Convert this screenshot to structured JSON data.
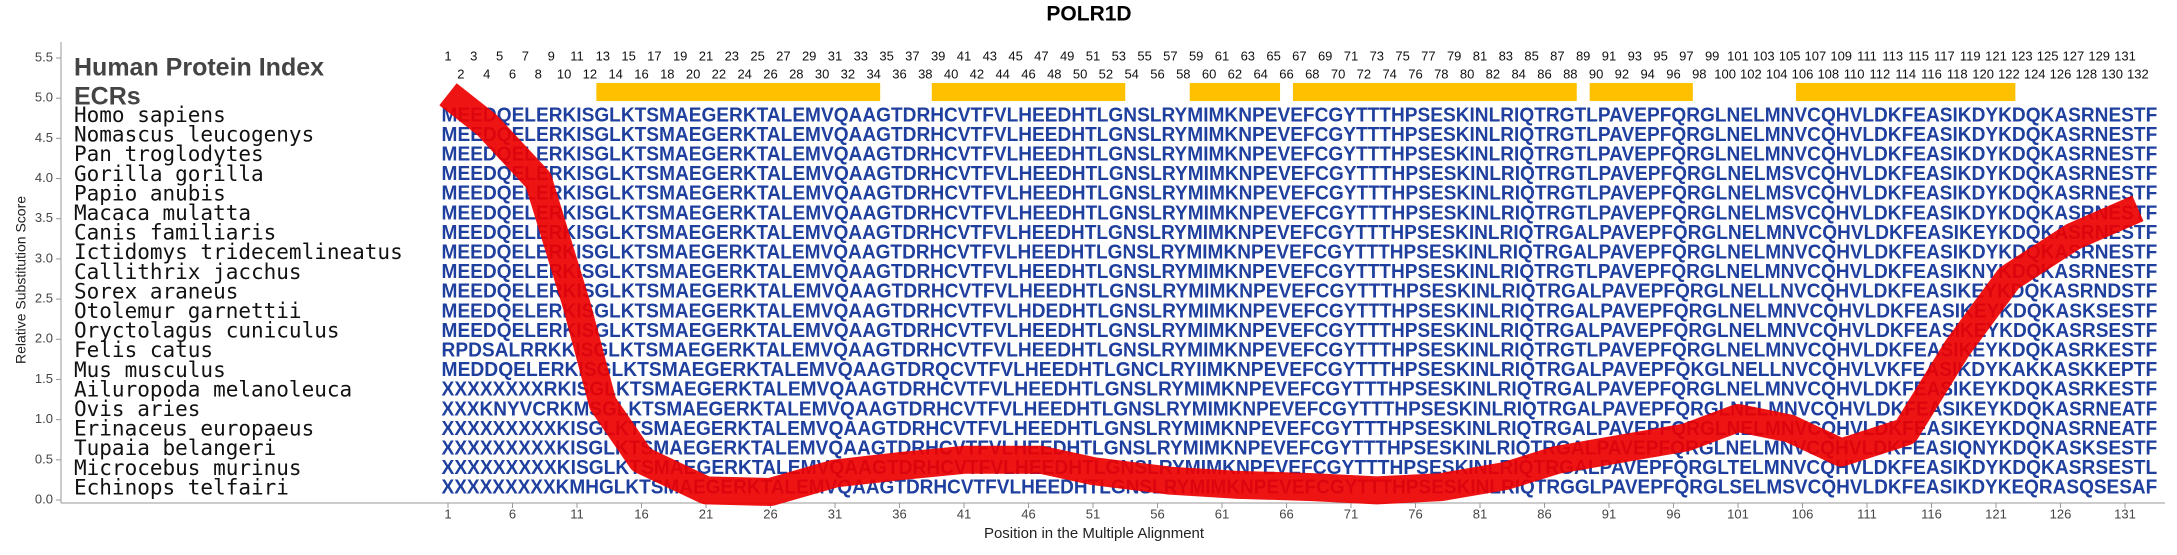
{
  "chart_data": {
    "type": "line",
    "title": "POLR1D",
    "y_label": "Relative Substitution Score",
    "x_label": "Position in the Multiple Alignment",
    "index_label": "Human Protein Index",
    "ecr_label": "ECRs",
    "color": "#ee0000",
    "ecr_color": "#ffc000",
    "sequence_color": "#1f3f9f",
    "ylim": [
      0,
      5.5
    ],
    "yticks": [
      {
        "value": 0,
        "label": "0.0"
      },
      {
        "value": 0.5,
        "label": "0.5"
      },
      {
        "value": 1,
        "label": "1.0"
      },
      {
        "value": 1.5,
        "label": "1.5"
      },
      {
        "value": 2,
        "label": "2.0"
      },
      {
        "value": 2.5,
        "label": "2.5"
      },
      {
        "value": 3,
        "label": "3.0"
      },
      {
        "value": 3.5,
        "label": "3.5"
      },
      {
        "value": 4,
        "label": "4.0"
      },
      {
        "value": 4.5,
        "label": "4.5"
      },
      {
        "value": 5,
        "label": "5.0"
      },
      {
        "value": 5.5,
        "label": "5.5"
      }
    ],
    "xlim": [
      1,
      132
    ],
    "xticks": [
      1,
      6,
      11,
      16,
      21,
      26,
      31,
      36,
      41,
      46,
      51,
      56,
      61,
      66,
      71,
      76,
      81,
      86,
      91,
      96,
      101,
      106,
      111,
      116,
      121,
      126,
      131
    ],
    "x": [
      1,
      4,
      8,
      11,
      13,
      16,
      21,
      26,
      31,
      36,
      41,
      47,
      51,
      57,
      62,
      68,
      73,
      78,
      83,
      87,
      92,
      97,
      101,
      105,
      109,
      114,
      118,
      122,
      127,
      132
    ],
    "values": [
      5.05,
      4.67,
      3.98,
      2.41,
      1.2,
      0.5,
      0.12,
      0.1,
      0.33,
      0.42,
      0.5,
      0.5,
      0.36,
      0.24,
      0.19,
      0.16,
      0.12,
      0.16,
      0.3,
      0.5,
      0.64,
      0.78,
      1.02,
      0.89,
      0.59,
      0.85,
      1.89,
      2.76,
      3.28,
      3.63
    ],
    "alignment_positions": [
      1,
      2,
      3,
      4,
      5,
      6,
      7,
      8,
      9,
      10,
      11,
      12,
      13,
      14,
      15,
      16,
      17,
      18,
      19,
      20,
      21,
      22,
      23,
      24,
      25,
      26,
      27,
      28,
      29,
      30,
      31,
      32,
      33,
      34,
      35,
      36,
      37,
      38,
      39,
      40,
      41,
      42,
      43,
      44,
      45,
      46,
      47,
      48,
      49,
      50,
      51,
      52,
      53,
      54,
      55,
      56,
      57,
      58,
      59,
      60,
      61,
      62,
      63,
      64,
      65,
      66,
      67,
      68,
      69,
      70,
      71,
      72,
      73,
      74,
      75,
      76,
      77,
      78,
      79,
      80,
      81,
      82,
      83,
      84,
      85,
      86,
      87,
      88,
      89,
      90,
      91,
      92,
      93,
      94,
      95,
      96,
      97,
      98,
      99,
      100,
      101,
      102,
      103,
      104,
      105,
      106,
      107,
      108,
      109,
      110,
      111,
      112,
      113,
      114,
      115,
      116,
      117,
      118,
      119,
      120,
      121,
      122,
      123,
      124,
      125,
      126,
      127,
      128,
      129,
      130,
      131,
      132
    ],
    "ecrs": [
      [
        13,
        34
      ],
      [
        39,
        53
      ],
      [
        59,
        65
      ],
      [
        67,
        88
      ],
      [
        90,
        97
      ],
      [
        106,
        122
      ]
    ],
    "species": [
      {
        "name": "Homo sapiens",
        "sequence": "MEEDQELERKISGLKTSMAEGERKTALEMVQAAGTDRHCVTFVLHEEDHTLGNSLRYMIMKNPEVEFCGYTTTHPSESKINLRIQTRGTLPAVEPFQRGLNELMNVCQHVLDKFEASIKDYKDQKASRNESTF"
      },
      {
        "name": "Nomascus leucogenys",
        "sequence": "MEEDQELERKISGLKTSMAEGERKTALEMVQAAGTDRHCVTFVLHEEDHTLGNSLRYMIMKNPEVEFCGYTTTHPSESKINLRIQTRGTLPAVEPFQRGLNELMNVCQHVLDKFEASIKDYKDQKASRNESTF"
      },
      {
        "name": "Pan troglodytes",
        "sequence": "MEEDQELERKISGLKTSMAEGERKTALEMVQAAGTDRHCVTFVLHEEDHTLGNSLRYMIMKNPEVEFCGYTTTHPSESKINLRIQTRGTLPAVEPFQRGLNELMNVCQHVLDKFEASIKDYKDQKASRNESTF"
      },
      {
        "name": "Gorilla gorilla",
        "sequence": "MEEDQELERKISGLKTSMAEGERKTALEMVQAAGTDRHCVTFVLHEEDHTLGNSLRYMIMKNPEVEFCGYTTTHPSESKINLRIQTRGTLPAVEPFQRGLNELMSVCQHVLDKFEASIKDYKDQKASRNESTF"
      },
      {
        "name": "Papio anubis",
        "sequence": "MEEDQELERKISGLKTSMAEGERKTALEMVQAAGTDRHCVTFVLHEEDHTLGNSLRYMIMKNPEVEFCGYTTTHPSESKINLRIQTRGTLPAVEPFQRGLNELMSVCQHVLDKFEASIKDYKDQKASRNESTF"
      },
      {
        "name": "Macaca mulatta",
        "sequence": "MEEDQELERKISGLKTSMAEGERKTALEMVQAAGTDRHCVTFVLHEEDHTLGNSLRYMIMKNPEVEFCGYTTTHPSESKINLRIQTRGTLPAVEPFQRGLNELMSVCQHVLDKFEASIKDYKDQKASRNESTF"
      },
      {
        "name": "Canis familiaris",
        "sequence": "MEEDQELERKISGLKTSMAEGERKTALEMVQAAGTDRHCVTFVLHEEDHTLGNSLRYMIMKNPEVEFCGYTTTHPSESKINLRIQTRGALPAVEPFQRGLNELMNVCQHVLDKFEASIKEYKDQKASRNESTF"
      },
      {
        "name": "Ictidomys tridecemlineatus",
        "sequence": "MEEDQELERKISGLKTSMAEGERKTALEMVQAAGTDRHCVTFVLHEEDHTLGNSLRYMIMKNPEVEFCGYTTTHPSESKINLRIQTRGALPAVEPFQRGLNELMNVCQHVLDKFEASIKDYKDQKASRNESTF"
      },
      {
        "name": "Callithrix jacchus",
        "sequence": "MEEDQELERKISGLKTSMAEGERKTALEMVQAAGTDRHCVTFVLHEEDHTLGNSLRYMIMKNPEVEFCGYTTTHPSESKINLRIQTRGTLPAVEPFQRGLNELMNVCQHVLDKFEASIKNYKDQKASRNESTF"
      },
      {
        "name": "Sorex araneus",
        "sequence": "MEEDQELERKISGLKTSMAEGERKTALEMVQAAGTDRHCVTFVLHEEDHTLGNSLRYMIMKNPEVEFCGYTTTHPSESKINLRIQTRGALPAVEPFQRGLNELLNVCQHVLDKFEASIKEYKDQKASRNDSTF"
      },
      {
        "name": "Otolemur garnettii",
        "sequence": "MEEDQELERKISGLKTSMAEGERKTALEMVQAAGTDRHCVTFVLHDEDHTLGNSLRYMIMKNPEVEFCGYTTTHPSESKINLRIQTRGALPAVEPFQRGLNELMNVCQHVLDKFEASIKEYKDQKASKSESTF"
      },
      {
        "name": "Oryctolagus cuniculus",
        "sequence": "MEEDQELERKISGLKTSMAEGERKTALEMVQAAGTDRHCVTFVLHEEDHTLGNSLRYMIMKNPEVEFCGYTTTHPSESKINLRIQTRGALPAVEPFQRGLNELMNVCQHVLDKFEASIKEYKDQKASRSESTF"
      },
      {
        "name": "Felis catus",
        "sequence": "RPDSALRRKKISGLKTSMAEGERKTALEMVQAAGTDRHCVTFVLHEEDHTLGNSLRYMIMKNPEVEFCGYTTTHPSESKINLRIQTRGTLPAVEPFQRGLNELMNVCQHVLDKFEASIKEYKDQKASRKESTF"
      },
      {
        "name": "Mus musculus",
        "sequence": "MEDDQELERKISGLKTSMAEGERKTALEMVQAAGTDRQCVTFVLHEEDHTLGNCLRYIIMKNPEVEFCGYTTTHPSESKINLRIQTRGALPAVEPFQKGLNELLNVCQHVLVKFEASIKDYKAKKASKKEPTF"
      },
      {
        "name": "Ailuropoda melanoleuca",
        "sequence": "XXXXXXXXRKISGLKTSMAEGERKTALEMVQAAGTDRHCVTFVLHEEDHTLGNSLRYMIMKNPEVEFCGYTTTHPSESKINLRIQTRGALPAVEPFQRGLNELMNVCQHVLDKFEASIKEYKDQKASRKESTF"
      },
      {
        "name": "Ovis aries",
        "sequence": "XXXKNYVCRKMSGLKTSMAEGERKTALEMVQAAGTDRHCVTFVLHEEDHTLGNSLRYMIMKNPEVEFCGYTTTHPSESKINLRIQTRGALPAVEPFQRGLNELMNVCQHVLDKFEASIKEYKDQKASRNEATF"
      },
      {
        "name": "Erinaceus europaeus",
        "sequence": "XXXXXXXXXKISGLKTSMAEGERKTALEMVQAAGTDRHCVTFVLHEEDHTLGNSLRYMIMKNPEVEFCGYTTTHPSESKINLRIQTRGALPAVEPFQRGLNELMNVCQHVLDKFEASIKEYKDQNASRNEATF"
      },
      {
        "name": "Tupaia belangeri",
        "sequence": "XXXXXXXXXKISGLKTSMAEGERKTALEMVQAAGTDRHCVTFVLHEEDHTLGNSLRYMIMKNPEVEFCGYTTTHPSESKINLRIQTRGALPAVEPFQRGLNELMNVCQHVLDKFEASIQNYKDQKASKSESTF"
      },
      {
        "name": "Microcebus murinus",
        "sequence": "XXXXXXXXXKISGLKTSMAEGERKTALEMVQAAGTDRHCVTFVLHEEDHTLGNSLRYMIMKNPEVEFCGYTTTHPSESKINLRIQTRGALPAVEPFQRGLTELMNVCQHVLDKFEASIKDYKDQKASRSESTL"
      },
      {
        "name": "Echinops telfairi",
        "sequence": "XXXXXXXXXKMHGLKTSMAEGERKTALEMVQAAGTDRHCVTFVLHEEDHTLGNSLRYMIMKNPEVEFCGYTTTHPSESKINLRIQTRGGLPAVEPFQRGLSELMSVCQHVLDKFEASIKDYKEQRASQSESAF"
      }
    ]
  }
}
